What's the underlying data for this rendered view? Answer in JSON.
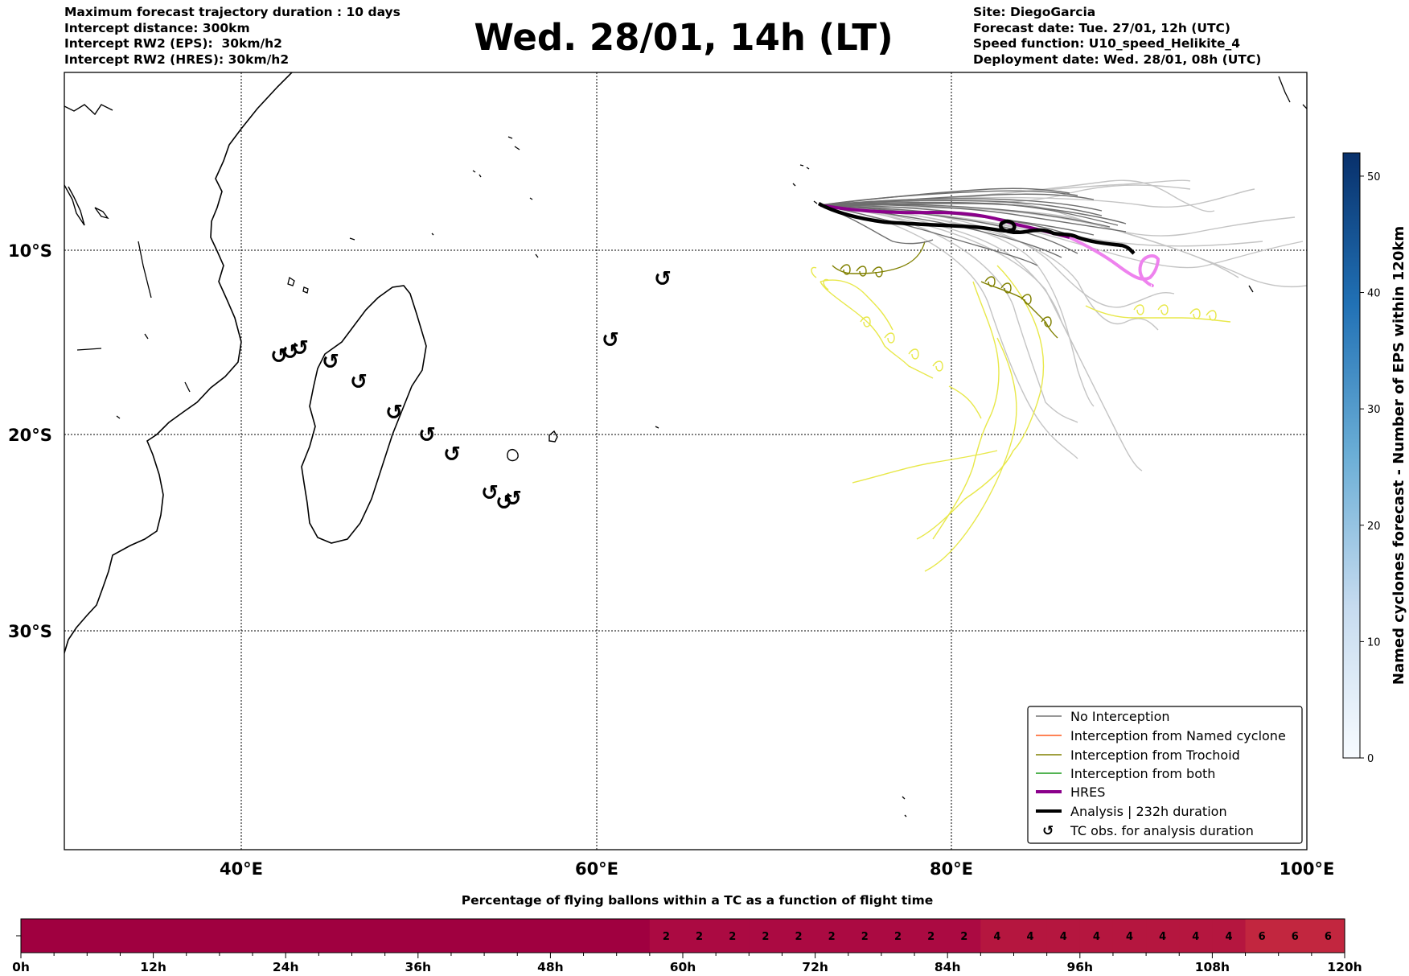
{
  "header": {
    "left_lines": [
      "Maximum forecast trajectory duration : 10 days",
      "Intercept distance: 300km",
      "Intercept RW2 (EPS):  30km/h2",
      "Intercept RW2 (HRES): 30km/h2"
    ],
    "title": "Wed. 28/01, 14h (LT)",
    "right_lines": [
      "Site: DiegoGarcia",
      "Forecast date: Tue. 27/01, 12h (UTC)",
      "Speed function: U10_speed_Helikite_4",
      "Deployment date: Wed. 28/01, 08h (UTC)"
    ]
  },
  "map": {
    "lon_ticks": [
      "40°E",
      "60°E",
      "80°E",
      "100°E"
    ],
    "lat_ticks": [
      "10°S",
      "20°S",
      "30°S"
    ],
    "tc_symbol": "↺"
  },
  "legend": {
    "items": [
      {
        "label": "No Interception",
        "color": "#777777",
        "style": "thin-line"
      },
      {
        "label": "Interception from Named cyclone",
        "color": "#ff5a1f",
        "style": "thin-line"
      },
      {
        "label": "Interception from Trochoid",
        "color": "#808000",
        "style": "thin-line"
      },
      {
        "label": "Interception from both",
        "color": "#1a9a1a",
        "style": "thin-line"
      },
      {
        "label": "HRES",
        "color": "#8b008b",
        "style": "thick-line"
      },
      {
        "label": "Analysis | 232h duration",
        "color": "#000000",
        "style": "thick-line"
      },
      {
        "label": "TC obs. for analysis duration",
        "color": "#000000",
        "style": "symbol"
      }
    ]
  },
  "colorbar": {
    "label": "Named cyclones forecast - Number of EPS within 120km",
    "ticks": [
      "0",
      "10",
      "20",
      "30",
      "40",
      "50"
    ],
    "range": [
      0,
      52
    ],
    "colors": [
      "#f7fbff",
      "#c6dbef",
      "#6baed6",
      "#2171b5",
      "#08306b"
    ]
  },
  "bottom_bar": {
    "title": "Percentage of flying ballons within a TC as a function of flight time",
    "time_labels": [
      "0h",
      "12h",
      "24h",
      "36h",
      "48h",
      "60h",
      "72h",
      "84h",
      "96h",
      "108h",
      "120h"
    ],
    "values": [
      0,
      0,
      0,
      0,
      0,
      0,
      0,
      0,
      0,
      0,
      0,
      0,
      0,
      0,
      0,
      0,
      0,
      0,
      0,
      2,
      2,
      2,
      2,
      2,
      2,
      2,
      2,
      2,
      2,
      4,
      4,
      4,
      4,
      4,
      4,
      4,
      4,
      6,
      6,
      6
    ],
    "colors": {
      "0": "#a00040",
      "2": "#ab0a42",
      "4": "#b5163f",
      "6": "#c2263f"
    }
  }
}
